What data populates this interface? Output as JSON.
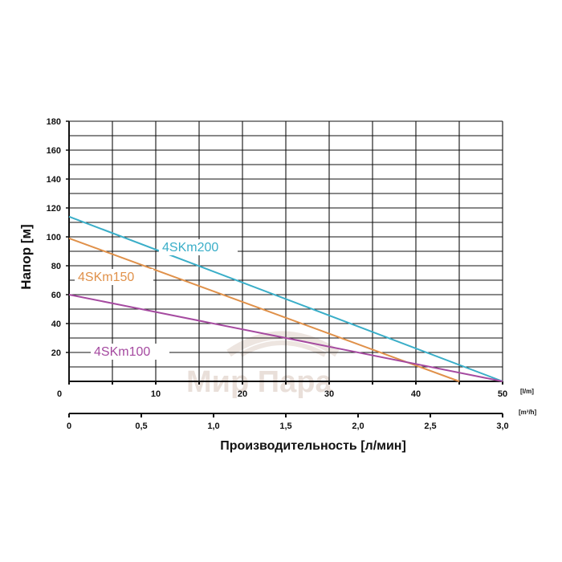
{
  "chart_data": {
    "type": "line",
    "ylabel": "Напор [м]",
    "xlabel": "Производительность [л/мин]",
    "ylim": [
      0,
      180
    ],
    "yticks": [
      20,
      40,
      60,
      80,
      100,
      120,
      140,
      160,
      180
    ],
    "xlim": [
      0,
      50
    ],
    "xticks_lmin": [
      "0",
      "10",
      "20",
      "30",
      "40",
      "50"
    ],
    "x_unit_top": "[l/m]",
    "x2_ticks": [
      "0",
      "0,5",
      "1,0",
      "1,5",
      "2,0",
      "2,5",
      "3,0"
    ],
    "x2_unit": "[m³/h]",
    "grid": true,
    "series": [
      {
        "name": "4SKm200",
        "color": "#3aaec8",
        "x": [
          0,
          50
        ],
        "y": [
          114,
          0
        ]
      },
      {
        "name": "4SKm150",
        "color": "#e0914a",
        "x": [
          0,
          45
        ],
        "y": [
          99,
          0
        ]
      },
      {
        "name": "4SKm100",
        "color": "#a54aa0",
        "x": [
          0,
          50
        ],
        "y": [
          60,
          0
        ]
      }
    ]
  },
  "watermark": {
    "text": "Мир Пара"
  }
}
